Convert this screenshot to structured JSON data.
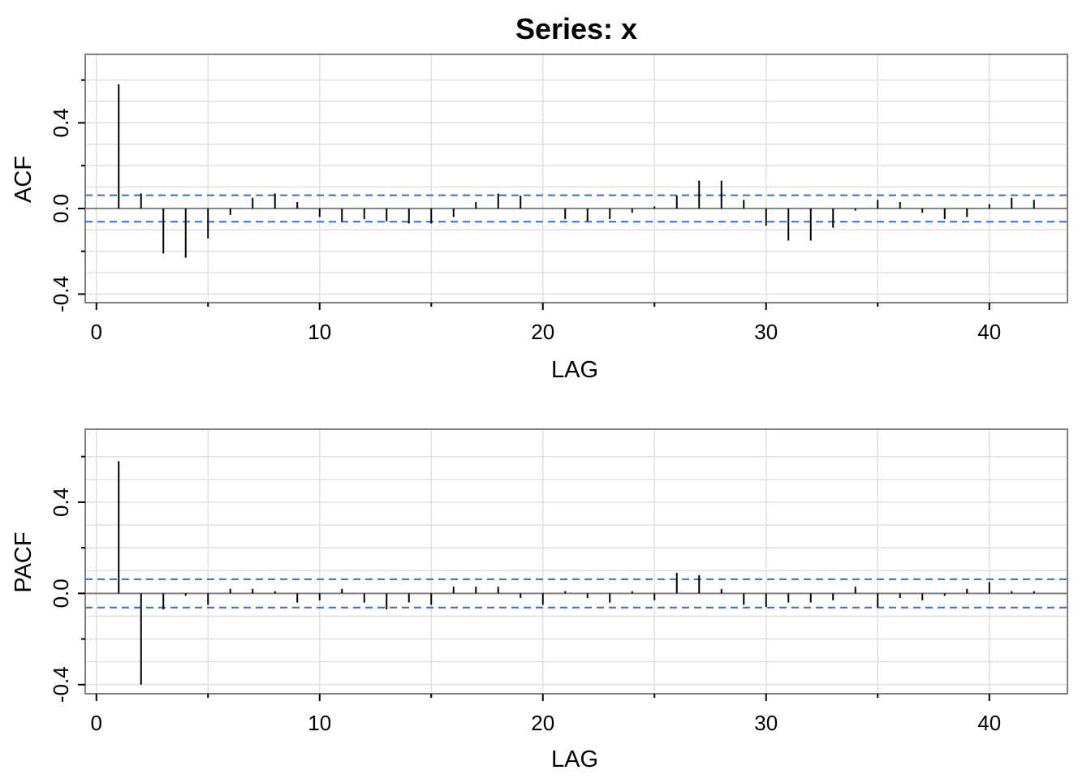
{
  "title": "Series:  x",
  "colors": {
    "grid": "#e0e0e0",
    "frame": "#808080",
    "zero_line": "#808080",
    "bars": "#000000",
    "confidence_band": "#2f6fcf"
  },
  "chart_data": [
    {
      "type": "bar",
      "title": "",
      "xlabel": "LAG",
      "ylabel": "ACF",
      "xlim": [
        -0.5,
        43.5
      ],
      "ylim": [
        -0.44,
        0.72
      ],
      "xticks": [
        0,
        10,
        20,
        30,
        40
      ],
      "yticks": [
        -0.4,
        0.0,
        0.4
      ],
      "xtick_labels": [
        "0",
        "10",
        "20",
        "30",
        "40"
      ],
      "ytick_labels": [
        "-0.4",
        "0.0",
        "0.4"
      ],
      "grid": true,
      "confidence_limits": [
        0.062,
        -0.062
      ],
      "x": [
        1,
        2,
        3,
        4,
        5,
        6,
        7,
        8,
        9,
        10,
        11,
        12,
        13,
        14,
        15,
        16,
        17,
        18,
        19,
        20,
        21,
        22,
        23,
        24,
        25,
        26,
        27,
        28,
        29,
        30,
        31,
        32,
        33,
        34,
        35,
        36,
        37,
        38,
        39,
        40,
        41,
        42
      ],
      "values": [
        0.58,
        0.07,
        -0.21,
        -0.23,
        -0.14,
        -0.03,
        0.05,
        0.07,
        0.03,
        -0.04,
        -0.06,
        -0.05,
        -0.06,
        -0.07,
        -0.07,
        -0.04,
        0.03,
        0.07,
        0.06,
        0.0,
        -0.05,
        -0.06,
        -0.05,
        -0.02,
        0.01,
        0.06,
        0.13,
        0.13,
        0.04,
        -0.08,
        -0.15,
        -0.15,
        -0.09,
        -0.01,
        0.04,
        0.03,
        -0.02,
        -0.05,
        -0.04,
        0.02,
        0.05,
        0.04
      ]
    },
    {
      "type": "bar",
      "title": "",
      "xlabel": "LAG",
      "ylabel": "PACF",
      "xlim": [
        -0.5,
        43.5
      ],
      "ylim": [
        -0.44,
        0.72
      ],
      "xticks": [
        0,
        10,
        20,
        30,
        40
      ],
      "yticks": [
        -0.4,
        0.0,
        0.4
      ],
      "xtick_labels": [
        "0",
        "10",
        "20",
        "30",
        "40"
      ],
      "ytick_labels": [
        "-0.4",
        "0.0",
        "0.4"
      ],
      "grid": true,
      "confidence_limits": [
        0.062,
        -0.062
      ],
      "x": [
        1,
        2,
        3,
        4,
        5,
        6,
        7,
        8,
        9,
        10,
        11,
        12,
        13,
        14,
        15,
        16,
        17,
        18,
        19,
        20,
        21,
        22,
        23,
        24,
        25,
        26,
        27,
        28,
        29,
        30,
        31,
        32,
        33,
        34,
        35,
        36,
        37,
        38,
        39,
        40,
        41,
        42
      ],
      "values": [
        0.58,
        -0.4,
        -0.07,
        -0.01,
        -0.05,
        0.02,
        0.02,
        0.01,
        -0.04,
        -0.03,
        0.02,
        -0.04,
        -0.07,
        -0.04,
        -0.05,
        0.03,
        0.03,
        0.03,
        -0.02,
        -0.05,
        0.01,
        -0.02,
        -0.04,
        0.01,
        -0.03,
        0.09,
        0.08,
        0.02,
        -0.05,
        -0.06,
        -0.04,
        -0.04,
        -0.03,
        0.03,
        -0.06,
        -0.02,
        -0.03,
        -0.01,
        0.02,
        0.05,
        0.01,
        0.01
      ]
    }
  ]
}
